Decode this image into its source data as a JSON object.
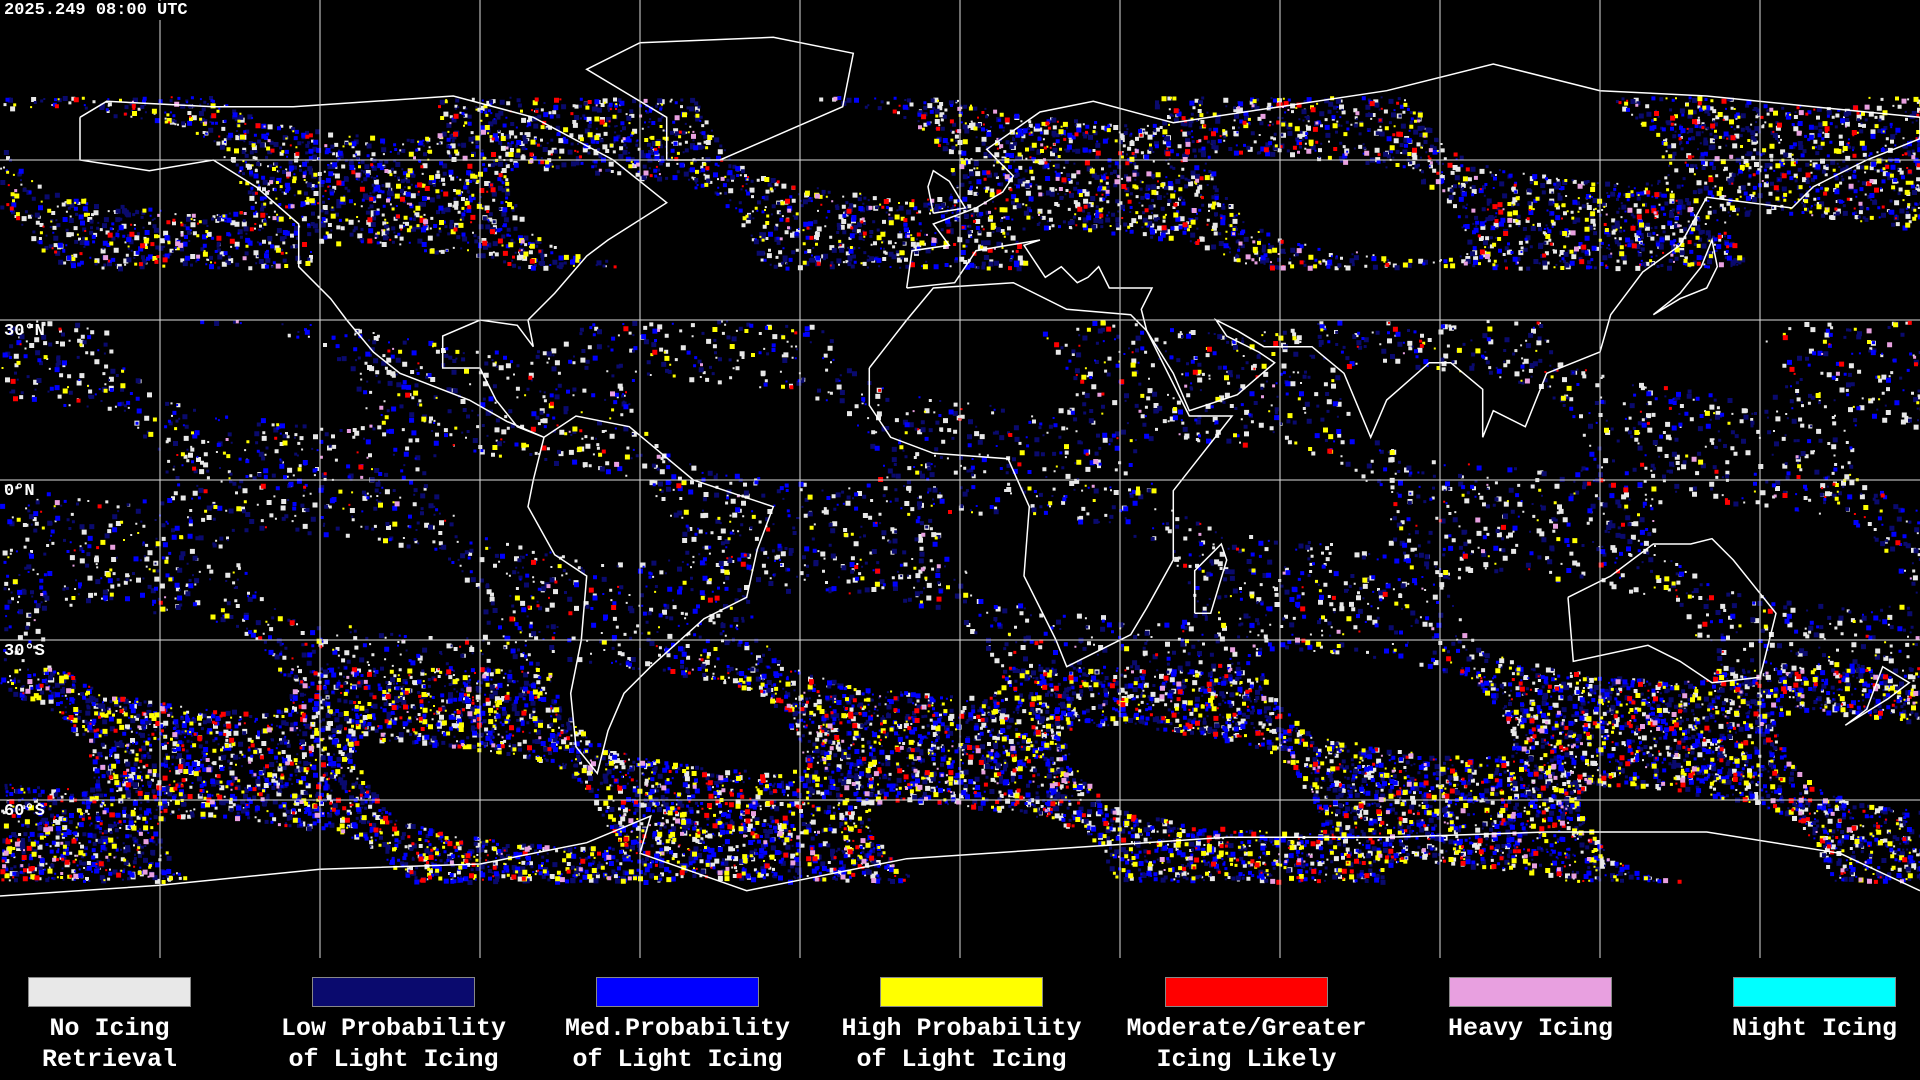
{
  "timestamp": "2025.249 08:00 UTC",
  "latitude_labels": [
    "30°N",
    "0°N",
    "30°S",
    "60°S"
  ],
  "legend": [
    {
      "label": "No Icing\nRetrieval",
      "color": "#e8e8e8"
    },
    {
      "label": "Low Probability\nof Light Icing",
      "color": "#0a0a6e"
    },
    {
      "label": "Med.Probability\nof Light Icing",
      "color": "#0000ff"
    },
    {
      "label": "High Probability\nof Light Icing",
      "color": "#ffff00"
    },
    {
      "label": "Moderate/Greater\nIcing Likely",
      "color": "#ff0000"
    },
    {
      "label": "Heavy Icing",
      "color": "#e8a0e0"
    },
    {
      "label": "Night Icing",
      "color": "#00ffff"
    }
  ]
}
